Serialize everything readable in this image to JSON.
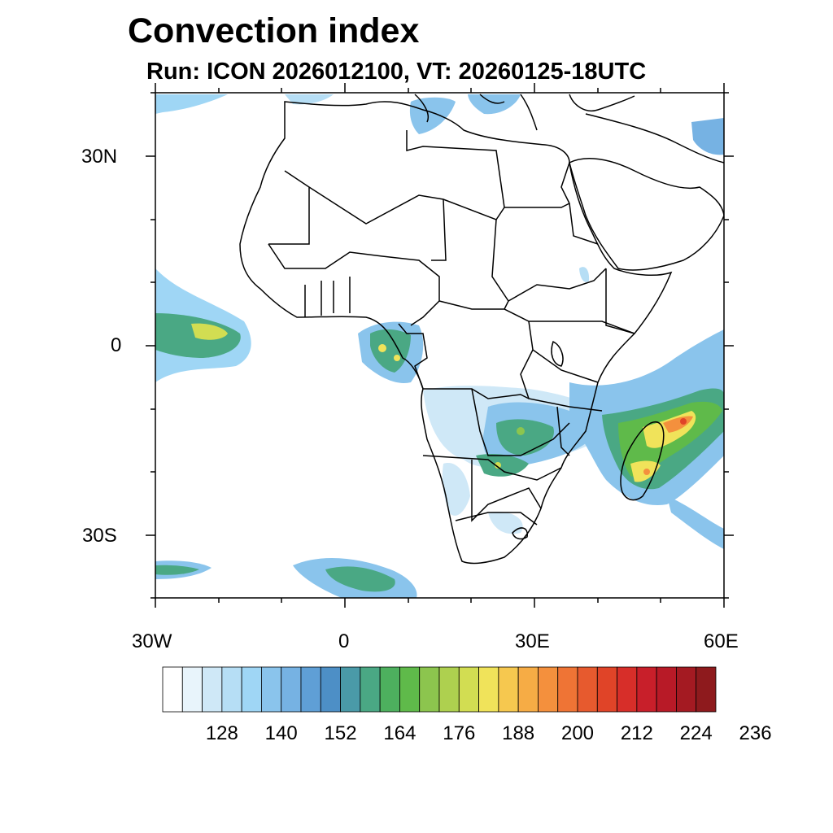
{
  "title": "Convection index",
  "subtitle": "Run: ICON 2026012100,  VT: 20260125-18UTC",
  "axes": {
    "lat_labels": [
      "30N",
      "0",
      "30S"
    ],
    "lon_labels": [
      "30W",
      "0",
      "30E",
      "60E"
    ]
  },
  "colorbar": {
    "colors": [
      "#ffffff",
      "#e8f4fb",
      "#cfe8f7",
      "#b6def5",
      "#9fd6f5",
      "#8ac4ec",
      "#76b2e3",
      "#5f9fd6",
      "#4d8fc6",
      "#4a9aa8",
      "#4aa884",
      "#4db05e",
      "#5fba4a",
      "#8cc54e",
      "#aed04f",
      "#d2dd52",
      "#f0e35a",
      "#f6c84f",
      "#f6ac45",
      "#f4903d",
      "#ef7435",
      "#e75a2e",
      "#e04428",
      "#d72e29",
      "#c81f2a",
      "#b81a27",
      "#a41a22",
      "#8e1a1d"
    ],
    "tick_labels": [
      "128",
      "140",
      "152",
      "164",
      "176",
      "188",
      "200",
      "212",
      "224",
      "236"
    ]
  }
}
